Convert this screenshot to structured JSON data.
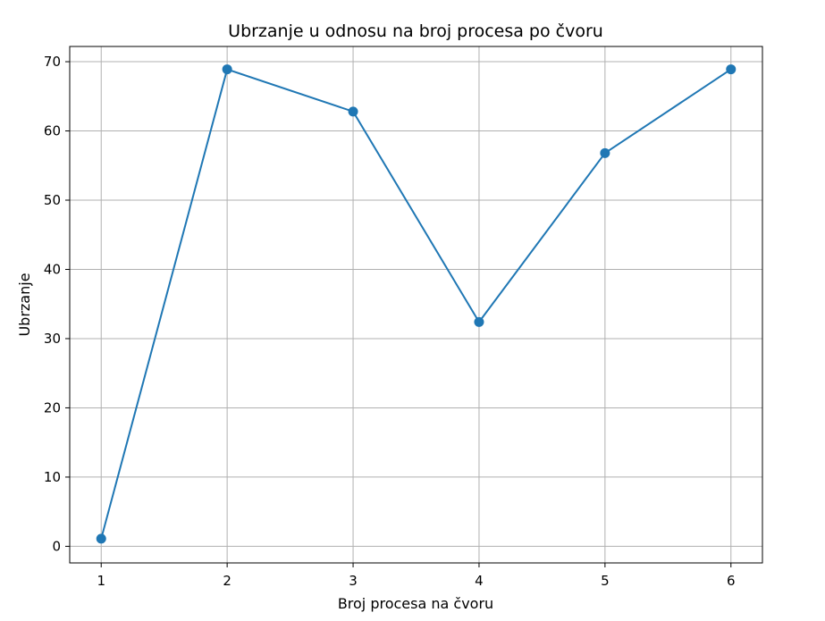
{
  "chart_data": {
    "type": "line",
    "title": "Ubrzanje u odnosu na broj procesa po čvoru",
    "xlabel": "Broj procesa na čvoru",
    "ylabel": "Ubrzanje",
    "x": [
      1,
      2,
      3,
      4,
      5,
      6
    ],
    "xticks": [
      "1",
      "2",
      "3",
      "4",
      "5",
      "6"
    ],
    "yticks": [
      "0",
      "10",
      "20",
      "30",
      "40",
      "50",
      "60",
      "70"
    ],
    "xlim": [
      0.75,
      6.25
    ],
    "ylim": [
      -2.4,
      72.2
    ],
    "grid": true,
    "line_color": "#1f77b4",
    "marker": "circle",
    "series": [
      {
        "values": [
          1.1,
          68.9,
          62.8,
          32.4,
          56.8,
          68.9
        ]
      }
    ]
  }
}
